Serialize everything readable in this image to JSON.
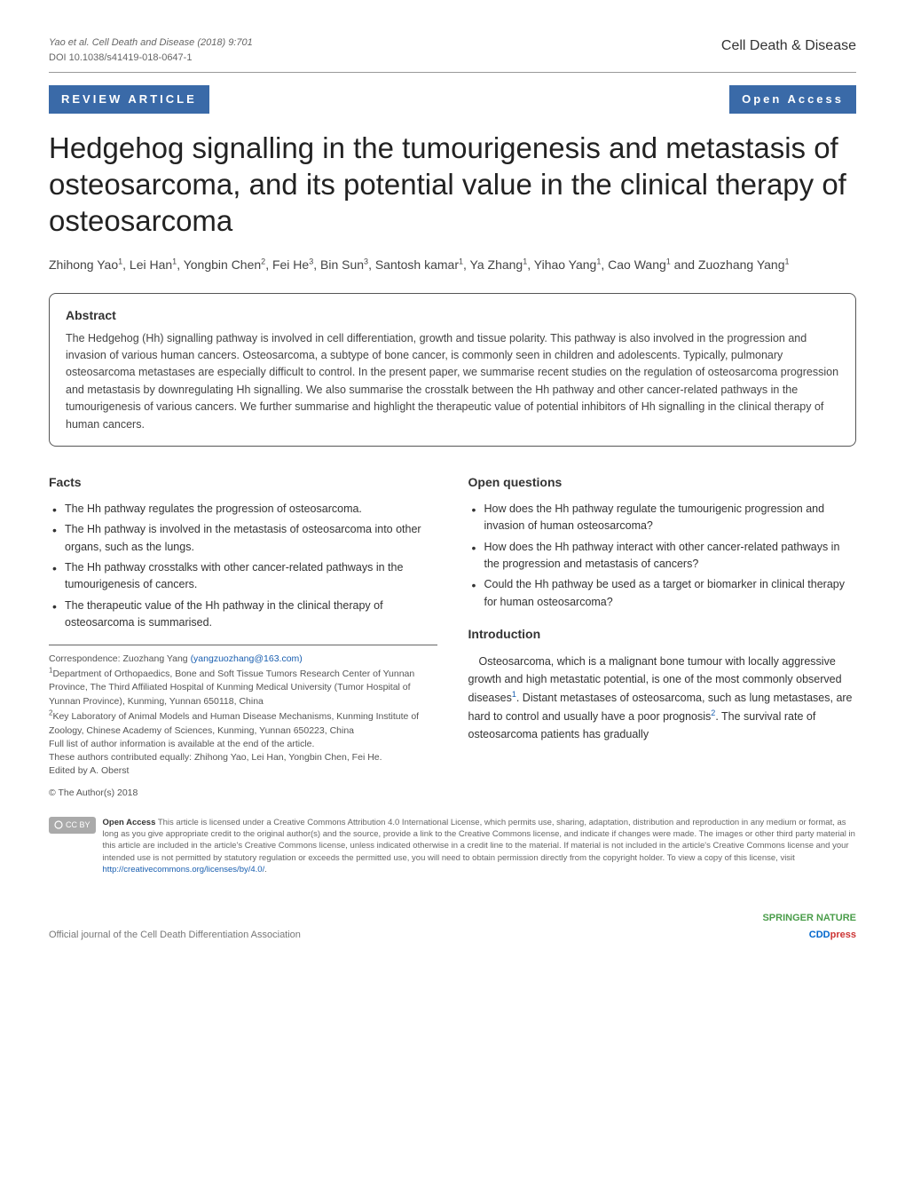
{
  "header": {
    "citation": "Yao et al. Cell Death and Disease   (2018) 9:701",
    "doi": "DOI 10.1038/s41419-018-0647-1",
    "journal": "Cell Death & Disease"
  },
  "badges": {
    "article_type": "REVIEW ARTICLE",
    "access": "Open Access"
  },
  "title": "Hedgehog signalling in the tumourigenesis and metastasis of osteosarcoma, and its potential value in the clinical therapy of osteosarcoma",
  "authors_html": "Zhihong Yao<sup>1</sup>, Lei Han<sup>1</sup>, Yongbin Chen<sup>2</sup>, Fei He<sup>3</sup>, Bin Sun<sup>3</sup>, Santosh kamar<sup>1</sup>, Ya Zhang<sup>1</sup>, Yihao Yang<sup>1</sup>, Cao Wang<sup>1</sup> and Zuozhang Yang<sup>1</sup>",
  "abstract": {
    "heading": "Abstract",
    "text": "The Hedgehog (Hh) signalling pathway is involved in cell differentiation, growth and tissue polarity. This pathway is also involved in the progression and invasion of various human cancers. Osteosarcoma, a subtype of bone cancer, is commonly seen in children and adolescents. Typically, pulmonary osteosarcoma metastases are especially difficult to control. In the present paper, we summarise recent studies on the regulation of osteosarcoma progression and metastasis by downregulating Hh signalling. We also summarise the crosstalk between the Hh pathway and other cancer-related pathways in the tumourigenesis of various cancers. We further summarise and highlight the therapeutic value of potential inhibitors of Hh signalling in the clinical therapy of human cancers."
  },
  "facts": {
    "heading": "Facts",
    "items": [
      "The Hh pathway regulates the progression of osteosarcoma.",
      "The Hh pathway is involved in the metastasis of osteosarcoma into other organs, such as the lungs.",
      "The Hh pathway crosstalks with other cancer-related pathways in the tumourigenesis of cancers.",
      "The therapeutic value of the Hh pathway in the clinical therapy of osteosarcoma is summarised."
    ]
  },
  "questions": {
    "heading": "Open questions",
    "items": [
      "How does the Hh pathway regulate the tumourigenic progression and invasion of human osteosarcoma?",
      "How does the Hh pathway interact with other cancer-related pathways in the progression and metastasis of cancers?",
      "Could the Hh pathway be used as a target or biomarker in clinical therapy for human osteosarcoma?"
    ]
  },
  "intro": {
    "heading": "Introduction",
    "text_html": "Osteosarcoma, which is a malignant bone tumour with locally aggressive growth and high metastatic potential, is one of the most commonly observed diseases<sup>1</sup>. Distant metastases of osteosarcoma, such as lung metastases, are hard to control and usually have a poor prognosis<sup>2</sup>. The survival rate of osteosarcoma patients has gradually"
  },
  "corr": {
    "line": "Correspondence: Zuozhang Yang ",
    "email": "(yangzuozhang@163.com)",
    "aff1": "<sup>1</sup>Department of Orthopaedics, Bone and Soft Tissue Tumors Research Center of Yunnan Province, The Third Affiliated Hospital of Kunming Medical University (Tumor Hospital of Yunnan Province), Kunming, Yunnan 650118, China",
    "aff2": "<sup>2</sup>Key Laboratory of Animal Models and Human Disease Mechanisms, Kunming Institute of Zoology, Chinese Academy of Sciences, Kunming, Yunnan 650223, China",
    "full_list": "Full list of author information is available at the end of the article.",
    "equal": "These authors contributed equally: Zhihong Yao, Lei Han, Yongbin Chen, Fei He.",
    "edited": "Edited by A. Oberst"
  },
  "license": {
    "copyright": "© The Author(s) 2018",
    "cc_label": "CC  BY",
    "title": "Open Access",
    "text": " This article is licensed under a Creative Commons Attribution 4.0 International License, which permits use, sharing, adaptation, distribution and reproduction in any medium or format, as long as you give appropriate credit to the original author(s) and the source, provide a link to the Creative Commons license, and indicate if changes were made. The images or other third party material in this article are included in the article's Creative Commons license, unless indicated otherwise in a credit line to the material. If material is not included in the article's Creative Commons license and your intended use is not permitted by statutory regulation or exceeds the permitted use, you will need to obtain permission directly from the copyright holder. To view a copy of this license, visit ",
    "link": "http://creativecommons.org/licenses/by/4.0/"
  },
  "footer": {
    "left": "Official journal of the Cell Death Differentiation Association",
    "springer": "SPRINGER NATURE",
    "cdd_blue": "CDD",
    "cdd_red": "press"
  },
  "colors": {
    "badge_bg": "#3a6aa8",
    "link": "#1a5fb0"
  }
}
